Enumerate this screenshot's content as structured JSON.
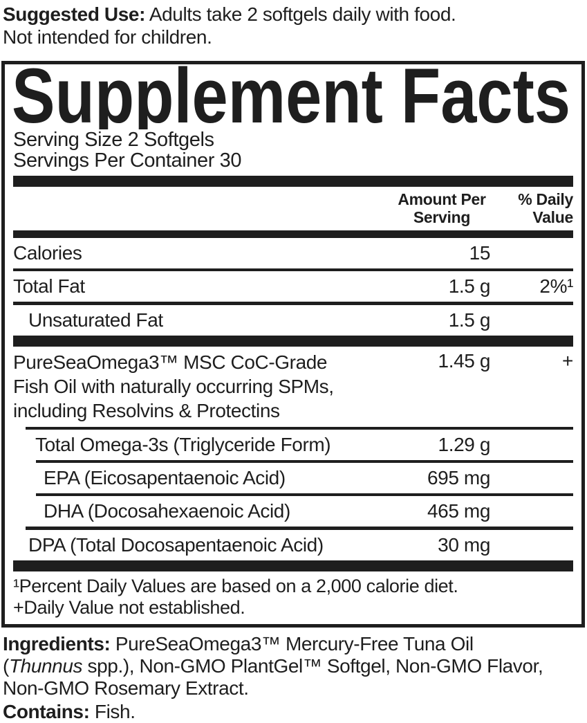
{
  "suggested_use": {
    "label": "Suggested Use:",
    "line1": "Adults take 2 softgels daily with food.",
    "line2": "Not intended for children."
  },
  "panel": {
    "title": "Supplement Facts",
    "serving_size": "Serving Size 2 Softgels",
    "servings_per_container": "Servings Per Container 30",
    "columns": {
      "amount_line1": "Amount Per",
      "amount_line2": "Serving",
      "dv_line1": "% Daily",
      "dv_line2": "Value"
    },
    "rows": [
      {
        "label": "Calories",
        "amount": "15",
        "daily_value": ""
      },
      {
        "label": "Total Fat",
        "amount": "1.5 g",
        "daily_value": "2%¹"
      },
      {
        "label": "Unsaturated Fat",
        "amount": "1.5 g",
        "daily_value": ""
      },
      {
        "label_line1": "PureSeaOmega3™ MSC CoC-Grade",
        "label_line2": "Fish Oil with naturally occurring SPMs,",
        "label_line3": "including Resolvins & Protectins",
        "amount": "1.45 g",
        "daily_value": "+"
      },
      {
        "label": "Total Omega-3s (Triglyceride Form)",
        "amount": "1.29 g",
        "daily_value": ""
      },
      {
        "label": "EPA (Eicosapentaenoic Acid)",
        "amount": "695 mg",
        "daily_value": ""
      },
      {
        "label": "DHA (Docosahexaenoic Acid)",
        "amount": "465 mg",
        "daily_value": ""
      },
      {
        "label": "DPA (Total Docosapentaenoic Acid)",
        "amount": "30 mg",
        "daily_value": ""
      }
    ],
    "footnotes": [
      "¹Percent Daily Values are based on a 2,000 calorie diet.",
      "+Daily Value not established."
    ]
  },
  "ingredients": {
    "label": "Ingredients:",
    "line1": "PureSeaOmega3™ Mercury-Free Tuna Oil",
    "line2_open": "(",
    "line2_species": "Thunnus",
    "line2_rest": "spp.), Non-GMO PlantGel™ Softgel, Non-GMO Flavor,",
    "line3": "Non-GMO Rosemary Extract."
  },
  "contains": {
    "label": "Contains:",
    "text": "Fish."
  },
  "colors": {
    "ink": "#1e1e1e",
    "background": "#ffffff"
  }
}
